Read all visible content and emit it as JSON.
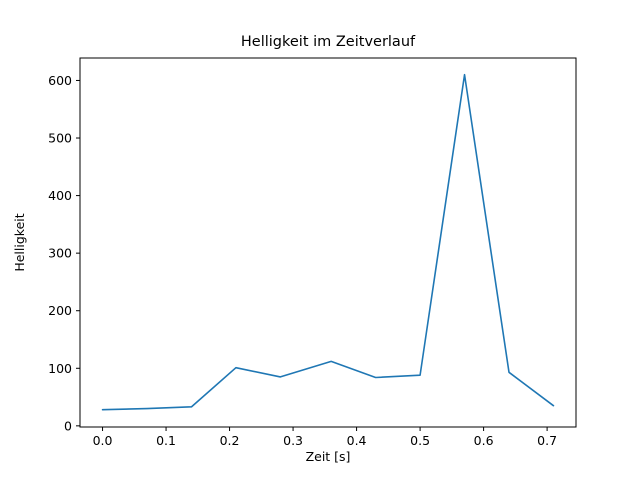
{
  "chart_data": {
    "type": "line",
    "title": "Helligkeit im Zeitverlauf",
    "xlabel": "Zeit [s]",
    "ylabel": "Helligkeit",
    "x": [
      0.0,
      0.07,
      0.14,
      0.21,
      0.28,
      0.36,
      0.43,
      0.5,
      0.57,
      0.64,
      0.71
    ],
    "values": [
      28,
      30,
      33,
      101,
      85,
      112,
      84,
      88,
      610,
      93,
      35
    ],
    "x_ticks": [
      0.0,
      0.1,
      0.2,
      0.3,
      0.4,
      0.5,
      0.6,
      0.7
    ],
    "x_tick_labels": [
      "0.0",
      "0.1",
      "0.2",
      "0.3",
      "0.4",
      "0.5",
      "0.6",
      "0.7"
    ],
    "y_ticks": [
      0,
      100,
      200,
      300,
      400,
      500,
      600
    ],
    "y_tick_labels": [
      "0",
      "100",
      "200",
      "300",
      "400",
      "500",
      "600"
    ],
    "xlim": [
      -0.0355,
      0.7455
    ],
    "ylim": [
      -2,
      639
    ],
    "line_color": "#1f77b4",
    "axis_color": "#000000",
    "background": "#ffffff",
    "grid": false,
    "legend": "none"
  }
}
